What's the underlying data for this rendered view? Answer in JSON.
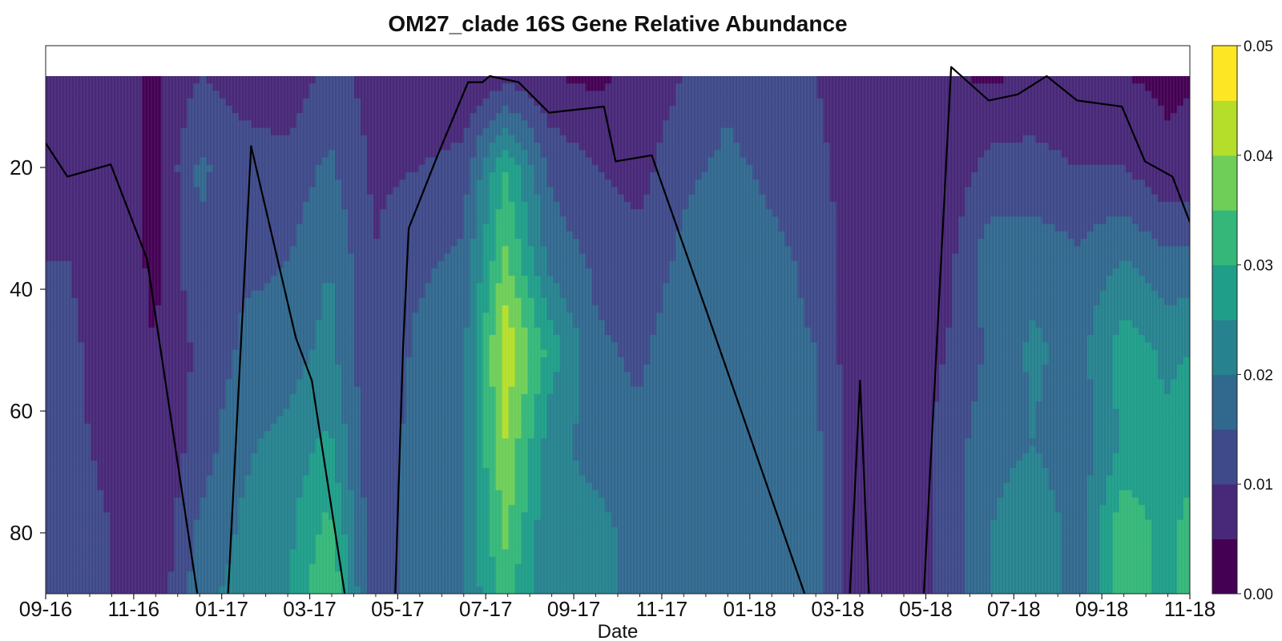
{
  "chart_data": {
    "type": "heatmap",
    "title": "OM27_clade 16S Gene Relative Abundance",
    "xlabel": "Date",
    "ylabel": "",
    "x_tick_labels": [
      "09-16",
      "11-16",
      "01-17",
      "03-17",
      "05-17",
      "07-17",
      "09-17",
      "11-17",
      "01-18",
      "03-18",
      "05-18",
      "07-18",
      "09-18",
      "11-18"
    ],
    "y_ticks": [
      20,
      40,
      60,
      80
    ],
    "ylim": [
      90,
      0
    ],
    "depth_range": [
      5,
      90
    ],
    "colorbar": {
      "ticks": [
        "0.00",
        "0.01",
        "0.02",
        "0.03",
        "0.04",
        "0.05"
      ],
      "range": [
        0,
        0.05
      ],
      "levels": 10,
      "colors": [
        "#440154",
        "#482878",
        "#3e4a89",
        "#31688e",
        "#26828e",
        "#1f9e89",
        "#35b779",
        "#6ece58",
        "#b5de2b",
        "#fde725"
      ]
    },
    "sample_columns": {
      "dates": [
        "2016-09-16",
        "2016-10-16",
        "2016-11-16",
        "2016-12-16",
        "2017-01-16",
        "2017-02-16",
        "2017-03-16",
        "2017-04-16",
        "2017-05-16",
        "2017-06-16",
        "2017-07-16",
        "2017-08-16",
        "2017-09-16",
        "2017-10-16",
        "2017-11-16",
        "2017-12-16",
        "2018-01-16",
        "2018-02-16",
        "2018-03-16",
        "2018-04-16",
        "2018-05-16",
        "2018-06-16",
        "2018-07-16",
        "2018-08-16",
        "2018-09-16",
        "2018-10-16",
        "2018-11-16"
      ],
      "depths": [
        5,
        20,
        35,
        50,
        65,
        80,
        90
      ],
      "abundance": [
        [
          0.008,
          0.009,
          0.01,
          0.011,
          0.011,
          0.012,
          0.012
        ],
        [
          0.007,
          0.008,
          0.008,
          0.008,
          0.009,
          0.01,
          0.01
        ],
        [
          0.004,
          0.004,
          0.004,
          0.005,
          0.005,
          0.006,
          0.006
        ],
        [
          0.01,
          0.016,
          0.014,
          0.011,
          0.012,
          0.016,
          0.018
        ],
        [
          0.008,
          0.012,
          0.014,
          0.016,
          0.019,
          0.021,
          0.022
        ],
        [
          0.006,
          0.012,
          0.015,
          0.017,
          0.022,
          0.024,
          0.024
        ],
        [
          0.012,
          0.016,
          0.02,
          0.022,
          0.026,
          0.032,
          0.036
        ],
        [
          0.008,
          0.009,
          0.01,
          0.01,
          0.01,
          0.011,
          0.011
        ],
        [
          0.006,
          0.01,
          0.014,
          0.016,
          0.018,
          0.018,
          0.018
        ],
        [
          0.005,
          0.012,
          0.016,
          0.018,
          0.019,
          0.02,
          0.02
        ],
        [
          0.008,
          0.03,
          0.036,
          0.044,
          0.04,
          0.036,
          0.032
        ],
        [
          0.005,
          0.014,
          0.018,
          0.028,
          0.022,
          0.02,
          0.02
        ],
        [
          0.004,
          0.01,
          0.014,
          0.016,
          0.018,
          0.022,
          0.022
        ],
        [
          0.006,
          0.008,
          0.012,
          0.014,
          0.016,
          0.018,
          0.018
        ],
        [
          0.01,
          0.014,
          0.016,
          0.018,
          0.019,
          0.02,
          0.02
        ],
        [
          0.014,
          0.016,
          0.018,
          0.019,
          0.019,
          0.019,
          0.019
        ],
        [
          0.012,
          0.014,
          0.016,
          0.016,
          0.017,
          0.017,
          0.017
        ],
        [
          0.01,
          0.012,
          0.014,
          0.015,
          0.016,
          0.016,
          0.016
        ],
        [
          0.005,
          0.006,
          0.006,
          0.006,
          0.006,
          0.006,
          0.006
        ],
        [
          0.005,
          0.005,
          0.006,
          0.006,
          0.006,
          0.006,
          0.006
        ],
        [
          0.006,
          0.006,
          0.008,
          0.01,
          0.012,
          0.012,
          0.012
        ],
        [
          0.004,
          0.012,
          0.018,
          0.016,
          0.018,
          0.02,
          0.02
        ],
        [
          0.006,
          0.012,
          0.018,
          0.021,
          0.02,
          0.024,
          0.024
        ],
        [
          0.005,
          0.01,
          0.016,
          0.018,
          0.016,
          0.018,
          0.018
        ],
        [
          0.005,
          0.01,
          0.02,
          0.028,
          0.026,
          0.034,
          0.034
        ],
        [
          0.004,
          0.006,
          0.016,
          0.024,
          0.026,
          0.028,
          0.028
        ],
        [
          0.005,
          0.008,
          0.016,
          0.026,
          0.03,
          0.036,
          0.036
        ]
      ]
    },
    "line_series": {
      "dates": [
        "2016-09-01",
        "2016-09-16",
        "2016-10-16",
        "2016-11-10",
        "2016-12-18",
        "2017-01-04",
        "2017-01-21",
        "2017-02-21",
        "2017-03-04",
        "2017-03-30",
        "2017-04-30",
        "2017-05-06",
        "2017-05-10",
        "2017-05-30",
        "2017-06-20",
        "2017-06-30",
        "2017-07-05",
        "2017-07-25",
        "2017-08-15",
        "2017-09-22",
        "2017-09-30",
        "2017-10-25",
        "2017-12-01",
        "2018-02-15",
        "2018-03-10",
        "2018-03-18",
        "2018-03-25",
        "2018-04-30",
        "2018-05-20",
        "2018-06-15",
        "2018-07-05",
        "2018-07-25",
        "2018-08-15",
        "2018-09-15",
        "2018-10-01",
        "2018-10-20",
        "2018-11-01"
      ],
      "depths": [
        16,
        21.5,
        19.5,
        35,
        95,
        95,
        16.5,
        48,
        55,
        95,
        95,
        50,
        30,
        18,
        6,
        6,
        5,
        6,
        11,
        10,
        19,
        18,
        43,
        95,
        95,
        55,
        95,
        95,
        3.5,
        9,
        8,
        5,
        9,
        10,
        19,
        21.5,
        29
      ]
    }
  }
}
